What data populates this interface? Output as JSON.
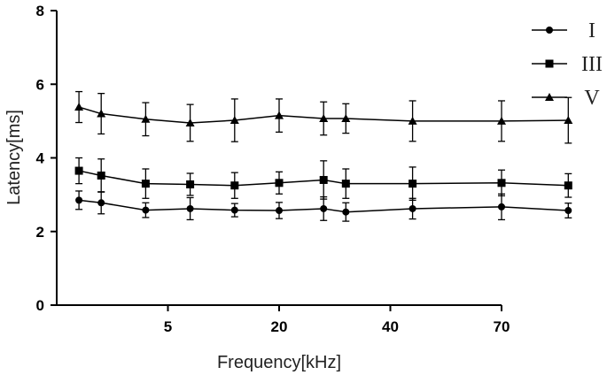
{
  "chart_data": {
    "type": "line",
    "xlabel": "Frequency[kHz]",
    "ylabel": "Latency[ms]",
    "ylim": [
      0,
      8
    ],
    "yticks": [
      "0",
      "2",
      "4",
      "6",
      "8"
    ],
    "xticks": [
      "5",
      "20",
      "40",
      "70"
    ],
    "x_positions": [
      1,
      2,
      4,
      6,
      8,
      10,
      12,
      13,
      16,
      20,
      23
    ],
    "xtick_positions": [
      5,
      10,
      15,
      20
    ],
    "xlim": [
      0,
      20
    ],
    "series": [
      {
        "name": "I",
        "marker": "circle",
        "values": [
          2.85,
          2.78,
          2.58,
          2.62,
          2.58,
          2.57,
          2.62,
          2.53,
          2.62,
          2.67,
          2.57
        ],
        "errors": [
          0.25,
          0.3,
          0.2,
          0.3,
          0.18,
          0.22,
          0.32,
          0.25,
          0.28,
          0.35,
          0.2
        ]
      },
      {
        "name": "III",
        "marker": "square",
        "values": [
          3.65,
          3.52,
          3.3,
          3.28,
          3.25,
          3.32,
          3.4,
          3.3,
          3.3,
          3.32,
          3.25
        ],
        "errors": [
          0.35,
          0.45,
          0.4,
          0.3,
          0.35,
          0.3,
          0.52,
          0.4,
          0.45,
          0.35,
          0.32
        ]
      },
      {
        "name": "V",
        "marker": "triangle",
        "values": [
          5.38,
          5.2,
          5.05,
          4.95,
          5.02,
          5.15,
          5.07,
          5.07,
          5.0,
          5.0,
          5.02
        ],
        "errors": [
          0.42,
          0.55,
          0.45,
          0.5,
          0.58,
          0.45,
          0.45,
          0.4,
          0.55,
          0.55,
          0.62
        ]
      }
    ],
    "legend": {
      "placement": "top-right",
      "entries": [
        "I",
        "III",
        "V"
      ]
    },
    "grid": false
  }
}
